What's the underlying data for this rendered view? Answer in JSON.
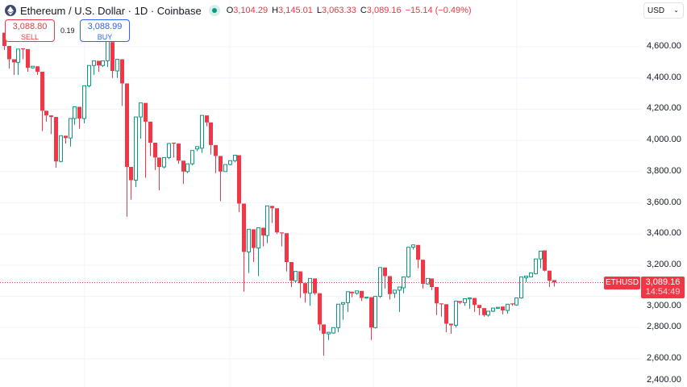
{
  "header": {
    "title": "Ethereum / U.S. Dollar · 1D · Coinbase",
    "o_label": "O",
    "o": "3,104.29",
    "h_label": "H",
    "h": "3,145.01",
    "l_label": "L",
    "l": "3,063.33",
    "c_label": "C",
    "c": "3,089.16",
    "change": "−15.14 (−0.49%)"
  },
  "trade": {
    "sell_price": "3,088.80",
    "sell_label": "SELL",
    "spread": "0.19",
    "buy_price": "3,088.99",
    "buy_label": "BUY"
  },
  "currency": "USD",
  "price_axis": [
    "4,600.00",
    "4,400.00",
    "4,200.00",
    "4,000.00",
    "3,800.00",
    "3,600.00",
    "3,400.00",
    "3,200.00",
    "3,000.00",
    "2,800.00",
    "2,600.00",
    "2,400.00"
  ],
  "last": {
    "symbol": "ETHUSD",
    "price": "3,089.16",
    "countdown": "14:54:49",
    "value": 3089.16
  },
  "colors": {
    "up": "#089981",
    "down": "#f23645",
    "grid": "#f0f3fa"
  },
  "chart_data": {
    "type": "candlestick",
    "ylim": [
      2400,
      4700
    ],
    "grid_levels": [
      4600,
      4400,
      4200,
      4000,
      3800,
      3600,
      3400,
      3200,
      3000,
      2800,
      2600,
      2400
    ],
    "candles": [
      [
        4690,
        4720,
        4580,
        4605
      ],
      [
        4605,
        4640,
        4460,
        4520
      ],
      [
        4520,
        4540,
        4420,
        4500
      ],
      [
        4500,
        4640,
        4420,
        4585
      ],
      [
        4590,
        4640,
        4520,
        4585
      ],
      [
        4585,
        4640,
        4440,
        4465
      ],
      [
        4465,
        4510,
        4460,
        4475
      ],
      [
        4475,
        4480,
        4420,
        4440
      ],
      [
        4440,
        4450,
        4060,
        4190
      ],
      [
        4190,
        4220,
        4120,
        4160
      ],
      [
        4160,
        4190,
        4040,
        4150
      ],
      [
        4150,
        4155,
        3825,
        3865
      ],
      [
        3865,
        4060,
        3860,
        4030
      ],
      [
        4030,
        4040,
        3980,
        4015
      ],
      [
        4015,
        4140,
        3960,
        4140
      ],
      [
        4140,
        4250,
        4100,
        4215
      ],
      [
        4215,
        4260,
        4075,
        4140
      ],
      [
        4140,
        4380,
        4110,
        4350
      ],
      [
        4350,
        4510,
        4340,
        4480
      ],
      [
        4480,
        4610,
        4420,
        4510
      ],
      [
        4510,
        4540,
        4440,
        4480
      ],
      [
        4480,
        4615,
        4470,
        4510
      ],
      [
        4510,
        4720,
        4470,
        4660
      ],
      [
        4630,
        4720,
        4400,
        4445
      ],
      [
        4445,
        4540,
        4400,
        4520
      ],
      [
        4520,
        4530,
        4220,
        4365
      ],
      [
        4365,
        4380,
        3510,
        3830
      ],
      [
        3830,
        3830,
        3620,
        3745
      ],
      [
        3745,
        4200,
        3700,
        4150
      ],
      [
        4150,
        4290,
        4010,
        4240
      ],
      [
        4240,
        4240,
        3760,
        4120
      ],
      [
        4120,
        4150,
        3900,
        3985
      ],
      [
        3985,
        4060,
        3810,
        3890
      ],
      [
        3890,
        3960,
        3680,
        3830
      ],
      [
        3830,
        3960,
        3820,
        3890
      ],
      [
        3890,
        4050,
        3880,
        3980
      ],
      [
        3985,
        4220,
        3890,
        3980
      ],
      [
        3980,
        4090,
        3850,
        3870
      ],
      [
        3870,
        3890,
        3720,
        3800
      ],
      [
        3800,
        3900,
        3790,
        3850
      ],
      [
        3850,
        4010,
        3840,
        3935
      ],
      [
        3945,
        3970,
        3930,
        3960
      ],
      [
        3950,
        4180,
        3920,
        4160
      ],
      [
        4160,
        4270,
        4090,
        4115
      ],
      [
        4115,
        4190,
        3910,
        3970
      ],
      [
        3970,
        4020,
        3790,
        3900
      ],
      [
        3900,
        3960,
        3610,
        3800
      ],
      [
        3800,
        3890,
        3800,
        3845
      ],
      [
        3845,
        3910,
        3840,
        3870
      ],
      [
        3870,
        3920,
        3860,
        3905
      ],
      [
        3905,
        3910,
        3540,
        3595
      ],
      [
        3595,
        3650,
        3030,
        3285
      ],
      [
        3285,
        3520,
        3150,
        3430
      ],
      [
        3430,
        3460,
        3220,
        3310
      ],
      [
        3310,
        3480,
        3130,
        3440
      ],
      [
        3440,
        3500,
        3320,
        3390
      ],
      [
        3390,
        3620,
        3340,
        3580
      ],
      [
        3580,
        3660,
        3470,
        3565
      ],
      [
        3565,
        3640,
        3400,
        3410
      ],
      [
        3410,
        3600,
        3320,
        3405
      ],
      [
        3405,
        3580,
        3160,
        3220
      ],
      [
        3220,
        3230,
        3060,
        3100
      ],
      [
        3100,
        3210,
        3090,
        3160
      ],
      [
        3160,
        3230,
        2990,
        3085
      ],
      [
        3085,
        3210,
        2960,
        3020
      ],
      [
        3020,
        3150,
        2940,
        3115
      ],
      [
        3115,
        3120,
        3010,
        3020
      ],
      [
        3020,
        3000,
        2780,
        2820
      ],
      [
        2820,
        2860,
        2620,
        2760
      ],
      [
        2760,
        2800,
        2720,
        2770
      ],
      [
        2765,
        2850,
        2760,
        2800
      ],
      [
        2800,
        2985,
        2770,
        2950
      ],
      [
        2950,
        2980,
        2850,
        2960
      ],
      [
        2960,
        3050,
        2900,
        3030
      ],
      [
        3030,
        3070,
        2995,
        3020
      ],
      [
        3020,
        3100,
        3010,
        3035
      ],
      [
        3035,
        3060,
        2970,
        2990
      ],
      [
        2990,
        3060,
        2985,
        2995
      ],
      [
        2995,
        2995,
        2720,
        2800
      ],
      [
        2800,
        3050,
        2795,
        3000
      ],
      [
        3000,
        3210,
        2990,
        3185
      ],
      [
        3185,
        3240,
        3050,
        3130
      ],
      [
        3130,
        3190,
        2980,
        3015
      ],
      [
        3020,
        3080,
        2990,
        3040
      ],
      [
        3040,
        3130,
        2900,
        3060
      ],
      [
        3055,
        3165,
        3020,
        3125
      ],
      [
        3125,
        3390,
        3120,
        3315
      ],
      [
        3315,
        3480,
        3300,
        3330
      ],
      [
        3330,
        3340,
        3180,
        3235
      ],
      [
        3235,
        3240,
        3050,
        3080
      ],
      [
        3080,
        3150,
        3075,
        3115
      ],
      [
        3115,
        3140,
        3040,
        3060
      ],
      [
        3060,
        3170,
        2880,
        2955
      ],
      [
        2955,
        3010,
        2870,
        2950
      ],
      [
        2950,
        2985,
        2770,
        2825
      ],
      [
        2825,
        2995,
        2760,
        2815
      ],
      [
        2815,
        3000,
        2800,
        2970
      ],
      [
        2970,
        2990,
        2950,
        2960
      ],
      [
        2960,
        3010,
        2940,
        2985
      ],
      [
        2985,
        3060,
        2920,
        2990
      ],
      [
        2990,
        3000,
        2900,
        2945
      ],
      [
        2945,
        2950,
        2880,
        2925
      ],
      [
        2925,
        2925,
        2870,
        2880
      ],
      [
        2880,
        2965,
        2870,
        2905
      ],
      [
        2905,
        2945,
        2900,
        2925
      ],
      [
        2925,
        2945,
        2920,
        2930
      ],
      [
        2935,
        3040,
        2885,
        2910
      ],
      [
        2910,
        2990,
        2890,
        2950
      ],
      [
        2955,
        3030,
        2940,
        2950
      ],
      [
        2945,
        3000,
        2940,
        2990
      ],
      [
        2990,
        3160,
        2985,
        3125
      ],
      [
        3120,
        3160,
        3090,
        3130
      ],
      [
        3125,
        3165,
        3140,
        3150
      ],
      [
        3145,
        3280,
        3140,
        3240
      ],
      [
        3240,
        3310,
        3180,
        3290
      ],
      [
        3295,
        3295,
        3160,
        3165
      ],
      [
        3165,
        3190,
        3060,
        3100
      ],
      [
        3104.29,
        3145.01,
        3063.33,
        3089.16
      ]
    ]
  }
}
